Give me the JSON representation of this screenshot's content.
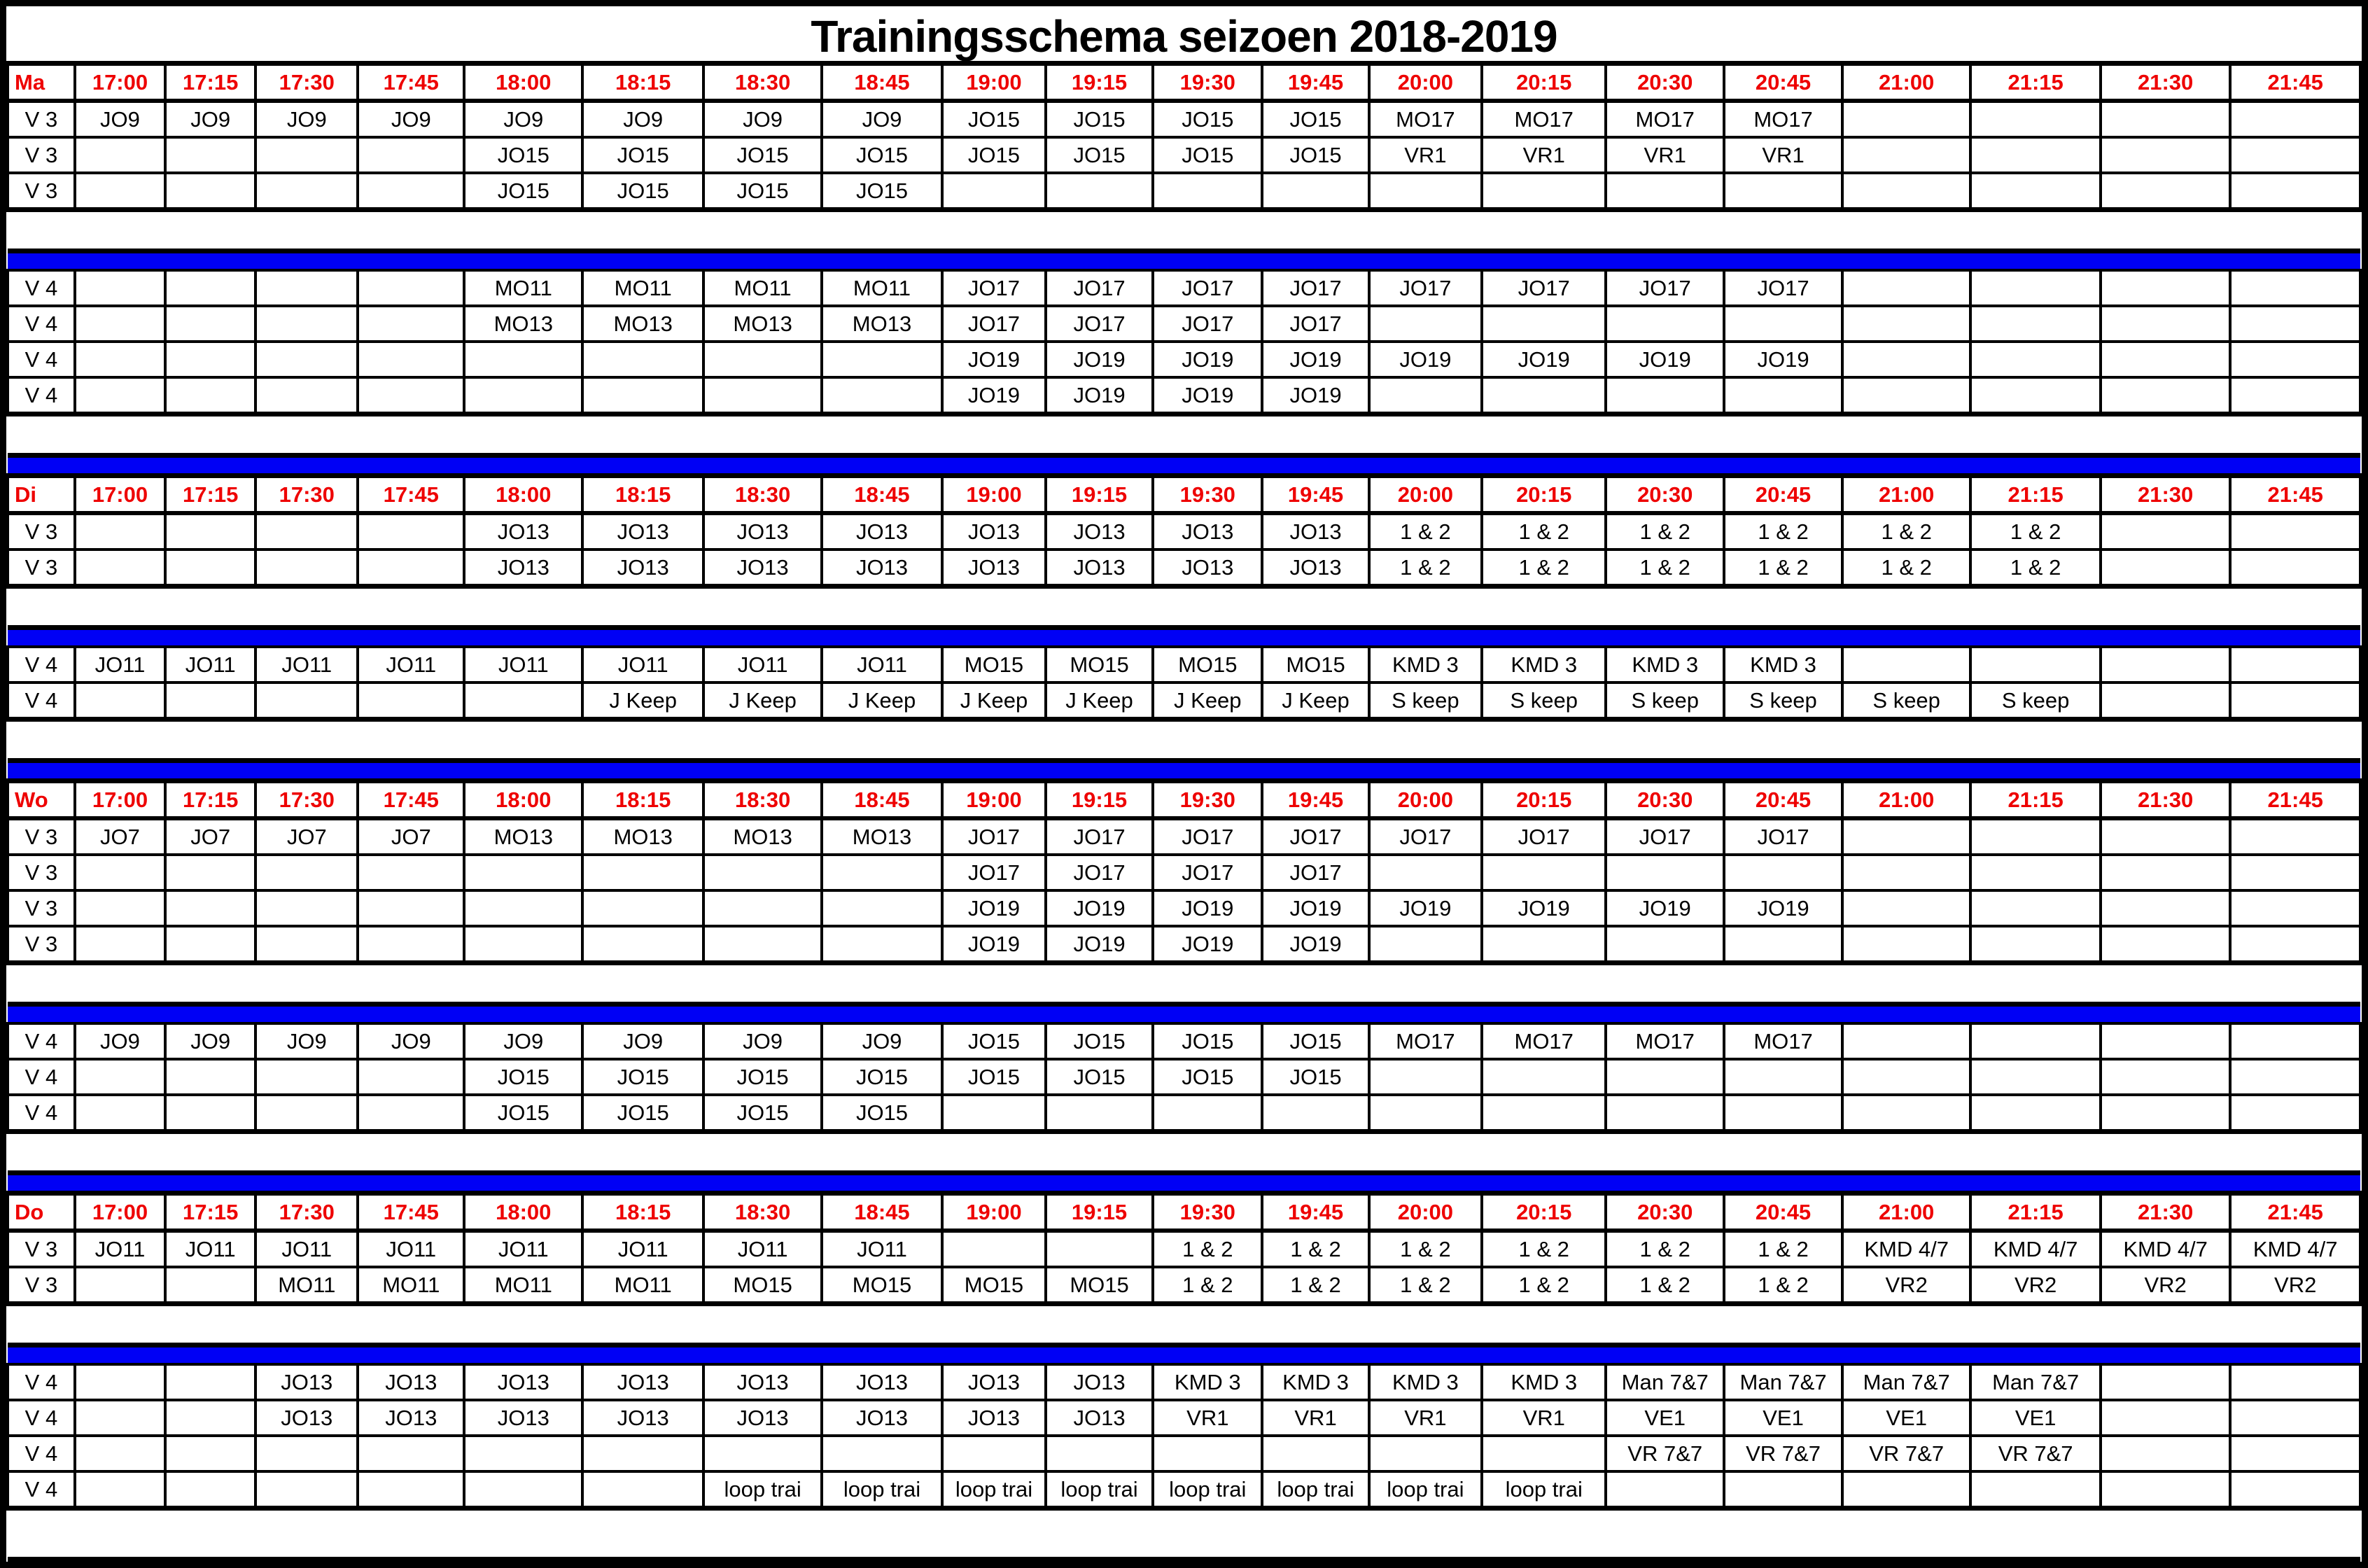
{
  "title": "Trainingsschema seizoen 2018-2019",
  "colors": {
    "header_text": "#ee0000",
    "separator_bar": "#0000f5",
    "grid": "#000000",
    "background": "#ffffff"
  },
  "time_slots": [
    "17:00",
    "17:15",
    "17:30",
    "17:45",
    "18:00",
    "18:15",
    "18:30",
    "18:45",
    "19:00",
    "19:15",
    "19:30",
    "19:45",
    "20:00",
    "20:15",
    "20:30",
    "20:45",
    "21:00",
    "21:15",
    "21:30",
    "21:45"
  ],
  "days": [
    {
      "label": "Ma",
      "blocks": [
        {
          "field": "V 3",
          "rows": [
            [
              "JO9",
              "JO9",
              "JO9",
              "JO9",
              "JO9",
              "JO9",
              "JO9",
              "JO9",
              "JO15",
              "JO15",
              "JO15",
              "JO15",
              "MO17",
              "MO17",
              "MO17",
              "MO17",
              "",
              "",
              "",
              ""
            ],
            [
              "",
              "",
              "",
              "",
              "JO15",
              "JO15",
              "JO15",
              "JO15",
              "JO15",
              "JO15",
              "JO15",
              "JO15",
              "VR1",
              "VR1",
              "VR1",
              "VR1",
              "",
              "",
              "",
              ""
            ],
            [
              "",
              "",
              "",
              "",
              "JO15",
              "JO15",
              "JO15",
              "JO15",
              "",
              "",
              "",
              "",
              "",
              "",
              "",
              "",
              "",
              "",
              "",
              ""
            ]
          ]
        },
        {
          "field": "V 4",
          "rows": [
            [
              "",
              "",
              "",
              "",
              "MO11",
              "MO11",
              "MO11",
              "MO11",
              "JO17",
              "JO17",
              "JO17",
              "JO17",
              "JO17",
              "JO17",
              "JO17",
              "JO17",
              "",
              "",
              "",
              ""
            ],
            [
              "",
              "",
              "",
              "",
              "MO13",
              "MO13",
              "MO13",
              "MO13",
              "JO17",
              "JO17",
              "JO17",
              "JO17",
              "",
              "",
              "",
              "",
              "",
              "",
              "",
              ""
            ],
            [
              "",
              "",
              "",
              "",
              "",
              "",
              "",
              "",
              "JO19",
              "JO19",
              "JO19",
              "JO19",
              "JO19",
              "JO19",
              "JO19",
              "JO19",
              "",
              "",
              "",
              ""
            ],
            [
              "",
              "",
              "",
              "",
              "",
              "",
              "",
              "",
              "JO19",
              "JO19",
              "JO19",
              "JO19",
              "",
              "",
              "",
              "",
              "",
              "",
              "",
              ""
            ]
          ]
        }
      ]
    },
    {
      "label": "Di",
      "blocks": [
        {
          "field": "V 3",
          "rows": [
            [
              "",
              "",
              "",
              "",
              "JO13",
              "JO13",
              "JO13",
              "JO13",
              "JO13",
              "JO13",
              "JO13",
              "JO13",
              "1 & 2",
              "1 & 2",
              "1 & 2",
              "1 & 2",
              "1 & 2",
              "1 & 2",
              "",
              ""
            ],
            [
              "",
              "",
              "",
              "",
              "JO13",
              "JO13",
              "JO13",
              "JO13",
              "JO13",
              "JO13",
              "JO13",
              "JO13",
              "1 & 2",
              "1 & 2",
              "1 & 2",
              "1 & 2",
              "1 & 2",
              "1 & 2",
              "",
              ""
            ]
          ]
        },
        {
          "field": "V 4",
          "rows": [
            [
              "JO11",
              "JO11",
              "JO11",
              "JO11",
              "JO11",
              "JO11",
              "JO11",
              "JO11",
              "MO15",
              "MO15",
              "MO15",
              "MO15",
              "KMD 3",
              "KMD 3",
              "KMD 3",
              "KMD 3",
              "",
              "",
              "",
              ""
            ],
            [
              "",
              "",
              "",
              "",
              "",
              "J Keep",
              "J Keep",
              "J Keep",
              "J Keep",
              "J Keep",
              "J Keep",
              "J Keep",
              "S keep",
              "S keep",
              "S keep",
              "S keep",
              "S keep",
              "S keep",
              "",
              ""
            ]
          ]
        }
      ]
    },
    {
      "label": "Wo",
      "blocks": [
        {
          "field": "V 3",
          "rows": [
            [
              "JO7",
              "JO7",
              "JO7",
              "JO7",
              "MO13",
              "MO13",
              "MO13",
              "MO13",
              "JO17",
              "JO17",
              "JO17",
              "JO17",
              "JO17",
              "JO17",
              "JO17",
              "JO17",
              "",
              "",
              "",
              ""
            ],
            [
              "",
              "",
              "",
              "",
              "",
              "",
              "",
              "",
              "JO17",
              "JO17",
              "JO17",
              "JO17",
              "",
              "",
              "",
              "",
              "",
              "",
              "",
              ""
            ],
            [
              "",
              "",
              "",
              "",
              "",
              "",
              "",
              "",
              "JO19",
              "JO19",
              "JO19",
              "JO19",
              "JO19",
              "JO19",
              "JO19",
              "JO19",
              "",
              "",
              "",
              ""
            ],
            [
              "",
              "",
              "",
              "",
              "",
              "",
              "",
              "",
              "JO19",
              "JO19",
              "JO19",
              "JO19",
              "",
              "",
              "",
              "",
              "",
              "",
              "",
              ""
            ]
          ]
        },
        {
          "field": "V 4",
          "rows": [
            [
              "JO9",
              "JO9",
              "JO9",
              "JO9",
              "JO9",
              "JO9",
              "JO9",
              "JO9",
              "JO15",
              "JO15",
              "JO15",
              "JO15",
              "MO17",
              "MO17",
              "MO17",
              "MO17",
              "",
              "",
              "",
              ""
            ],
            [
              "",
              "",
              "",
              "",
              "JO15",
              "JO15",
              "JO15",
              "JO15",
              "JO15",
              "JO15",
              "JO15",
              "JO15",
              "",
              "",
              "",
              "",
              "",
              "",
              "",
              ""
            ],
            [
              "",
              "",
              "",
              "",
              "JO15",
              "JO15",
              "JO15",
              "JO15",
              "",
              "",
              "",
              "",
              "",
              "",
              "",
              "",
              "",
              "",
              "",
              ""
            ]
          ]
        }
      ]
    },
    {
      "label": "Do",
      "blocks": [
        {
          "field": "V 3",
          "rows": [
            [
              "JO11",
              "JO11",
              "JO11",
              "JO11",
              "JO11",
              "JO11",
              "JO11",
              "JO11",
              "",
              "",
              "1 & 2",
              "1 & 2",
              "1 & 2",
              "1 & 2",
              "1 & 2",
              "1 & 2",
              "KMD 4/7",
              "KMD 4/7",
              "KMD 4/7",
              "KMD 4/7"
            ],
            [
              "",
              "",
              "MO11",
              "MO11",
              "MO11",
              "MO11",
              "MO15",
              "MO15",
              "MO15",
              "MO15",
              "1 & 2",
              "1 & 2",
              "1 & 2",
              "1 & 2",
              "1 & 2",
              "1 & 2",
              "VR2",
              "VR2",
              "VR2",
              "VR2"
            ]
          ]
        },
        {
          "field": "V 4",
          "rows": [
            [
              "",
              "",
              "JO13",
              "JO13",
              "JO13",
              "JO13",
              "JO13",
              "JO13",
              "JO13",
              "JO13",
              "KMD 3",
              "KMD 3",
              "KMD 3",
              "KMD 3",
              "Man 7&7",
              "Man 7&7",
              "Man 7&7",
              "Man 7&7",
              "",
              ""
            ],
            [
              "",
              "",
              "JO13",
              "JO13",
              "JO13",
              "JO13",
              "JO13",
              "JO13",
              "JO13",
              "JO13",
              "VR1",
              "VR1",
              "VR1",
              "VR1",
              "VE1",
              "VE1",
              "VE1",
              "VE1",
              "",
              ""
            ],
            [
              "",
              "",
              "",
              "",
              "",
              "",
              "",
              "",
              "",
              "",
              "",
              "",
              "",
              "",
              "VR 7&7",
              "VR 7&7",
              "VR 7&7",
              "VR 7&7",
              "",
              ""
            ],
            [
              "",
              "",
              "",
              "",
              "",
              "",
              "loop trai",
              "loop trai",
              "loop trai",
              "loop trai",
              "loop trai",
              "loop trai",
              "loop trai",
              "loop trai",
              "",
              "",
              "",
              "",
              "",
              ""
            ]
          ]
        }
      ]
    }
  ]
}
